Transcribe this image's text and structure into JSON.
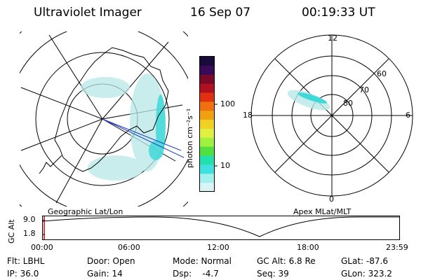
{
  "header": {
    "instrument": "Ultraviolet Imager",
    "date": "16 Sep 07",
    "time": "00:19:33 UT"
  },
  "colorbar": {
    "unit_label": "photon cm⁻²s⁻¹",
    "ticks": [
      "100",
      "10"
    ],
    "colors": [
      "#1a0a3a",
      "#3a0a5a",
      "#7a0a2a",
      "#b01020",
      "#e03010",
      "#f07010",
      "#f0a010",
      "#f0d020",
      "#e0f040",
      "#a0f040",
      "#50e040",
      "#20e0b0",
      "#40e0e0",
      "#a0f0f0",
      "#d8f4f4"
    ]
  },
  "left_panel": {
    "caption": "Geographic Lat/Lon"
  },
  "right_panel": {
    "caption": "Apex MLat/MLT",
    "mlt_labels": [
      "12",
      "18",
      "6",
      "0"
    ],
    "mlat_labels": [
      "60",
      "70",
      "80"
    ]
  },
  "altitude_plot": {
    "ylabel": "GC Alt",
    "yticks": [
      "9.0",
      "1.8"
    ],
    "xticks": [
      "00:00",
      "06:00",
      "12:00",
      "18:00",
      "23:59"
    ]
  },
  "info": {
    "flt": "Flt: LBHL",
    "ip": "IP: 36.0",
    "door": "Door: Open",
    "gain": "Gain: 14",
    "mode": "Mode: Normal",
    "dsp": "Dsp:    -4.7",
    "gc_alt": "GC Alt: 6.8 Re",
    "seq": "Seq: 39",
    "glat": "GLat: -87.6",
    "glon": "GLon: 323.2"
  },
  "colors": {
    "aurora": "#40d8d8",
    "aurora_faint": "#b8e8e8",
    "bar_marker": "#cc0000",
    "track_line": "#2040c0"
  }
}
